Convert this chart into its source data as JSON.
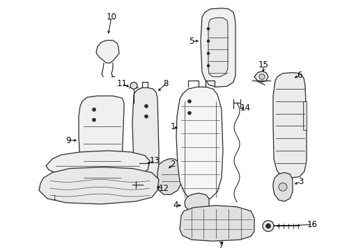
{
  "bg_color": "#ffffff",
  "fig_width": 4.89,
  "fig_height": 3.6,
  "dpi": 100,
  "lc": "#2a2a2a",
  "lw": 0.9,
  "fc": "#f2f2f2",
  "font_size": 8.5
}
